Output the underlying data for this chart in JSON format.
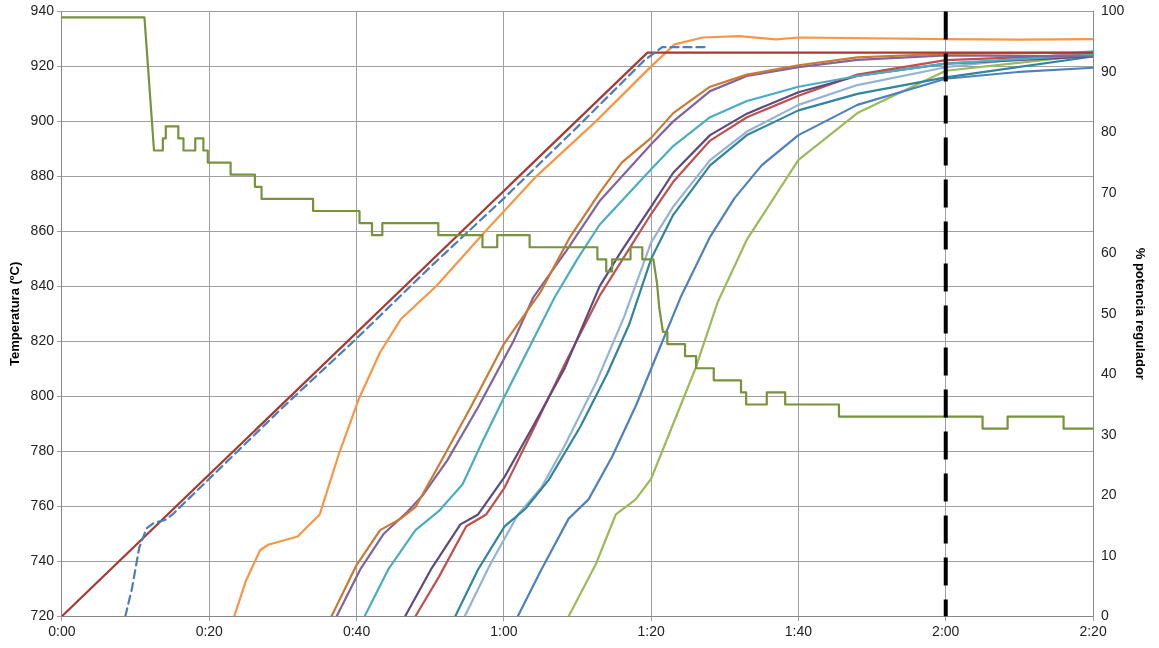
{
  "chart_data": {
    "type": "line",
    "ylabel": "Temperatura (ºC)",
    "y2label": "% potencia regulador",
    "marker": "none",
    "grid": true,
    "xlim": [
      0,
      140
    ],
    "xticks": [
      {
        "value": 0,
        "label": "0:00"
      },
      {
        "value": 20,
        "label": "0:20"
      },
      {
        "value": 40,
        "label": "0:40"
      },
      {
        "value": 60,
        "label": "1:00"
      },
      {
        "value": 80,
        "label": "1:20"
      },
      {
        "value": 100,
        "label": "1:40"
      },
      {
        "value": 120,
        "label": "2:00"
      },
      {
        "value": 140,
        "label": "2:20"
      }
    ],
    "ylim": [
      720,
      940
    ],
    "yticks": [
      720,
      740,
      760,
      780,
      800,
      820,
      840,
      860,
      880,
      900,
      920,
      940
    ],
    "y2lim": [
      0,
      100
    ],
    "y2ticks": [
      0,
      10,
      20,
      30,
      40,
      50,
      60,
      70,
      80,
      90,
      100
    ],
    "ref_lines": [
      {
        "axis": "x",
        "value": 120,
        "color": "#000000",
        "line_style": "dashed"
      }
    ],
    "series": [
      {
        "color": "#77933c",
        "axis": "y2",
        "x": [
          0,
          11.2,
          12.5,
          13.7,
          13.7,
          14.1,
          14.1,
          15.8,
          15.8,
          16.5,
          16.5,
          18.1,
          18.1,
          19.2,
          19.2,
          19.8,
          19.8,
          22.9,
          22.9,
          26.2,
          26.2,
          27.1,
          27.1,
          34.1,
          34.1,
          40.4,
          40.4,
          42.1,
          42.1,
          43.5,
          43.5,
          51.1,
          51.1,
          57.1,
          57.1,
          59.1,
          59.1,
          63.5,
          63.5,
          72.7,
          72.7,
          73.9,
          73.9,
          74.7,
          74.7,
          77.2,
          77.2,
          78.8,
          78.8,
          80.3,
          80.8,
          81.1,
          81.6,
          82.2,
          82.2,
          84.6,
          84.6,
          86.1,
          86.1,
          88.5,
          88.5,
          92.2,
          92.2,
          92.9,
          92.9,
          95.7,
          95.7,
          98.2,
          98.2,
          105.5,
          105.5,
          125,
          125,
          128.4,
          128.4,
          136,
          136,
          140
        ],
        "values": [
          99,
          99,
          77,
          77,
          79,
          79,
          81,
          81,
          79,
          79,
          77,
          77,
          79,
          79,
          77,
          77,
          75,
          75,
          73,
          73,
          71,
          71,
          69,
          69,
          67,
          67,
          65,
          65,
          63,
          63,
          65,
          65,
          63,
          63,
          61,
          61,
          63,
          63,
          61,
          61,
          59,
          59,
          57,
          57,
          59,
          59,
          61,
          61,
          59,
          59,
          55,
          51,
          47,
          47,
          45,
          45,
          43,
          43,
          41,
          41,
          39,
          39,
          37,
          37,
          35,
          35,
          37,
          37,
          35,
          35,
          33,
          33,
          31,
          31,
          33,
          33,
          31,
          31
        ]
      },
      {
        "color": "#4a7ebb",
        "line_style": "dashed",
        "x": [
          8.6,
          9.5,
          10.5,
          11.5,
          12.5,
          14,
          15,
          20,
          30,
          40,
          50,
          60,
          70,
          79,
          80.5,
          81.5,
          87.6
        ],
        "values": [
          720,
          730,
          745,
          752,
          754,
          755,
          757,
          770,
          796,
          821,
          847,
          872,
          898,
          922,
          925,
          927,
          927
        ]
      },
      {
        "color": "#a83a32",
        "x": [
          0,
          79.5,
          140
        ],
        "values": [
          720,
          925,
          925
        ]
      },
      {
        "color": "#f79646",
        "x": [
          23.4,
          25,
          26.9,
          28,
          32,
          35,
          37.6,
          40.3,
          43.2,
          46,
          50.8,
          57.5,
          64.4,
          72.5,
          80,
          83.2,
          87,
          92,
          97,
          100,
          120,
          130,
          140
        ],
        "values": [
          720,
          733,
          744,
          746,
          749,
          757,
          779,
          799,
          816,
          828,
          840,
          860,
          880,
          900,
          920,
          928,
          930.5,
          931,
          929.8,
          930.5,
          929.9,
          929.7,
          929.9
        ]
      },
      {
        "color": "#cc7a30",
        "x": [
          36.6,
          40,
          43.2,
          46,
          48,
          51.2,
          55.5,
          60,
          65,
          69,
          73,
          76,
          80,
          83,
          88,
          93,
          100,
          108,
          120,
          140
        ],
        "values": [
          720,
          738.6,
          751.3,
          755.5,
          759.7,
          775,
          796,
          819,
          838,
          858,
          874,
          885,
          894,
          903,
          912.6,
          917,
          920.4,
          923.3,
          924.6,
          925
        ]
      },
      {
        "color": "#8064a2",
        "x": [
          37.3,
          40.5,
          43.7,
          46.9,
          49,
          52.3,
          56.5,
          61.3,
          64,
          68.5,
          73,
          80,
          83,
          88,
          93,
          100,
          108,
          120,
          140
        ],
        "values": [
          720,
          737,
          750,
          758,
          764,
          776.6,
          796,
          820,
          836,
          853,
          871,
          891.7,
          900,
          911,
          916.5,
          919.7,
          922.4,
          924,
          923.6
        ]
      },
      {
        "color": "#4bacc6",
        "x": [
          41.1,
          44.3,
          48,
          51.2,
          54.4,
          57,
          60.1,
          63.5,
          66.9,
          70,
          73,
          80,
          83,
          88,
          93,
          100,
          108,
          120,
          140
        ],
        "values": [
          720,
          737,
          751.3,
          758.3,
          768,
          783,
          800,
          818,
          836,
          850,
          862.4,
          882.6,
          891,
          901.5,
          907.4,
          912.6,
          916.5,
          921,
          924.3
        ]
      },
      {
        "color": "#604a7b",
        "x": [
          46.6,
          50.1,
          54.1,
          56.5,
          60.1,
          64,
          68.3,
          73,
          76,
          80,
          83,
          88,
          93,
          100,
          108,
          120,
          140
        ],
        "values": [
          720,
          737,
          753.4,
          757,
          770.7,
          789.3,
          810.4,
          840,
          853,
          869,
          881.3,
          895,
          902.8,
          910.6,
          916.5,
          921,
          923.6
        ]
      },
      {
        "color": "#c0504d",
        "x": [
          48,
          51.2,
          54.9,
          57.6,
          60.1,
          64,
          68.3,
          73,
          80,
          83,
          88,
          93,
          100,
          108,
          120,
          140
        ],
        "values": [
          720,
          734.4,
          752.7,
          757,
          766.8,
          788,
          811.8,
          836.5,
          866.3,
          878,
          893,
          901.5,
          909.3,
          917,
          922.3,
          924.3
        ]
      },
      {
        "color": "#31859c",
        "x": [
          53.4,
          56.5,
          60.1,
          62.9,
          66.1,
          70.4,
          74,
          77,
          80,
          83,
          88,
          93,
          100,
          108,
          120,
          140
        ],
        "values": [
          720,
          737,
          752.7,
          759,
          769.6,
          789,
          808,
          826,
          850,
          866,
          884,
          895,
          904,
          910,
          916,
          923.6
        ]
      },
      {
        "color": "#95b3d7",
        "x": [
          54.7,
          58.1,
          61.9,
          65.1,
          68.3,
          72.5,
          76.3,
          80,
          83,
          88,
          93,
          100,
          108,
          120,
          140
        ],
        "values": [
          720,
          738.6,
          756.9,
          766.8,
          782.3,
          804.8,
          828.7,
          856,
          869,
          885.9,
          896.3,
          906,
          913.2,
          919.7,
          925.6
        ]
      },
      {
        "color": "#4f81bd",
        "x": [
          61.9,
          65.1,
          68.8,
          71.5,
          74.7,
          78,
          80,
          84,
          88,
          91.3,
          95,
          100,
          108,
          120,
          130,
          140
        ],
        "values": [
          720,
          737,
          755.5,
          762.5,
          778,
          797,
          810,
          836,
          858,
          872,
          884,
          895,
          906,
          915.5,
          918,
          919.5
        ]
      },
      {
        "color": "#9bbb59",
        "x": [
          68.8,
          72.5,
          75.2,
          77.9,
          80,
          83,
          86,
          89,
          93,
          100,
          108,
          120,
          140
        ],
        "values": [
          720,
          739,
          757,
          762.5,
          770,
          790,
          810,
          834,
          857,
          886,
          903,
          918.4,
          924.3
        ]
      }
    ]
  }
}
